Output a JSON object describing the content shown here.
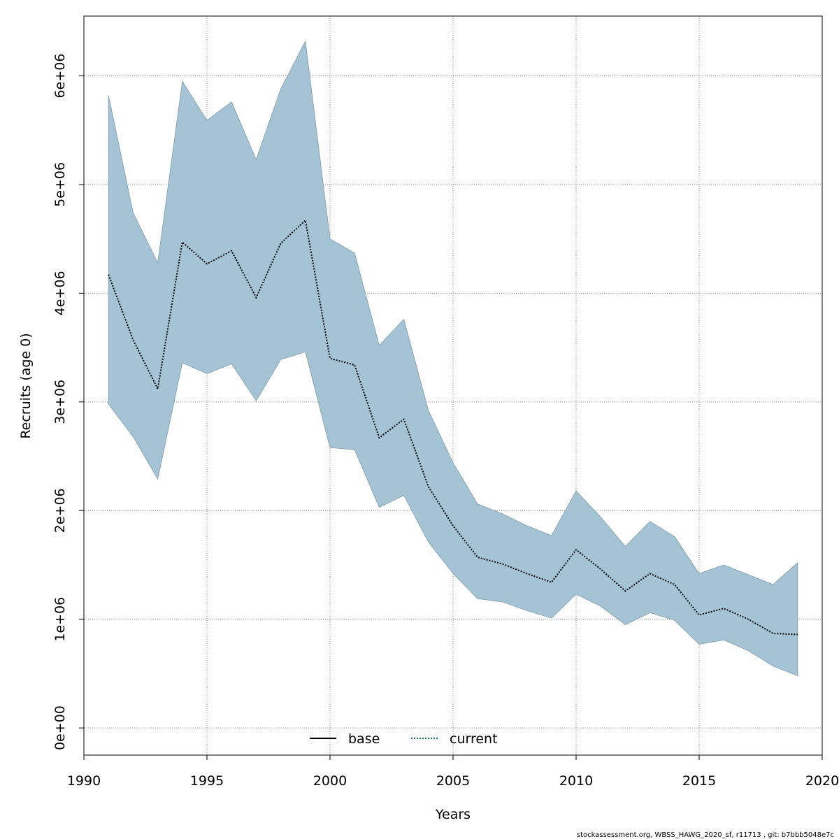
{
  "chart_data": {
    "type": "area",
    "xlabel": "Years",
    "ylabel": "Recruits (age 0)",
    "xlim": [
      1990,
      2020
    ],
    "ylim": [
      -250000,
      6550000
    ],
    "x_ticks": [
      1990,
      1995,
      2000,
      2005,
      2010,
      2015,
      2020
    ],
    "x_tick_labels": [
      "1990",
      "1995",
      "2000",
      "2005",
      "2010",
      "2015",
      "2020"
    ],
    "y_ticks": [
      0,
      1000000,
      2000000,
      3000000,
      4000000,
      5000000,
      6000000
    ],
    "y_tick_labels": [
      "0e+00",
      "1e+06",
      "2e+06",
      "3e+06",
      "4e+06",
      "5e+06",
      "6e+06"
    ],
    "grid": true,
    "legend_position": "bottom-center",
    "x": [
      1991,
      1992,
      1993,
      1994,
      1995,
      1996,
      1997,
      1998,
      1999,
      2000,
      2001,
      2002,
      2003,
      2004,
      2005,
      2006,
      2007,
      2008,
      2009,
      2010,
      2011,
      2012,
      2013,
      2014,
      2015,
      2016,
      2017,
      2018,
      2019
    ],
    "band": {
      "upper": [
        5820000,
        4740000,
        4280000,
        5950000,
        5590000,
        5760000,
        5230000,
        5880000,
        6320000,
        4500000,
        4370000,
        3520000,
        3760000,
        2920000,
        2440000,
        2060000,
        1970000,
        1860000,
        1770000,
        2180000,
        1940000,
        1670000,
        1900000,
        1760000,
        1420000,
        1500000,
        1410000,
        1320000,
        1520000
      ],
      "lower": [
        2980000,
        2680000,
        2290000,
        3360000,
        3260000,
        3350000,
        3010000,
        3390000,
        3460000,
        2580000,
        2560000,
        2030000,
        2140000,
        1710000,
        1420000,
        1190000,
        1160000,
        1080000,
        1010000,
        1230000,
        1120000,
        950000,
        1060000,
        990000,
        770000,
        810000,
        710000,
        570000,
        480000
      ]
    },
    "series": [
      {
        "name": "current",
        "values": [
          4170000,
          3570000,
          3120000,
          4470000,
          4270000,
          4390000,
          3960000,
          4460000,
          4670000,
          3400000,
          3340000,
          2670000,
          2840000,
          2220000,
          1860000,
          1570000,
          1510000,
          1420000,
          1340000,
          1640000,
          1460000,
          1260000,
          1420000,
          1320000,
          1040000,
          1100000,
          1000000,
          870000,
          860000
        ]
      }
    ],
    "legend": [
      {
        "label": "base",
        "style": "solid",
        "color": "#000000"
      },
      {
        "label": "current",
        "style": "dotted",
        "color": "#1f5b8c"
      }
    ],
    "colors": {
      "band_fill": "#a4c4d6",
      "band_stroke": "#7f9aaa",
      "line": "#000000",
      "grid": "#808080"
    }
  },
  "footer": "stockassessment.org, WBSS_HAWG_2020_sf, r11713 , git: b7bbb5048e7c"
}
